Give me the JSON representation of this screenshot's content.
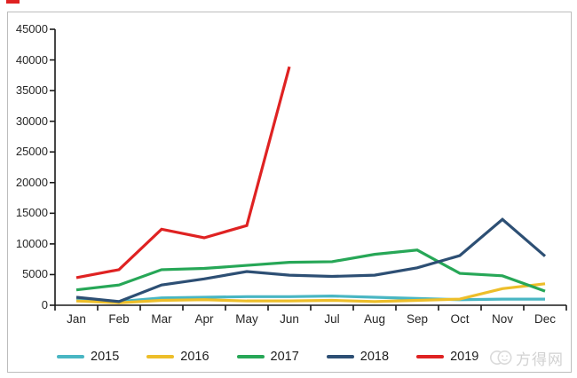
{
  "page": {
    "top_left_marker_color": "#df2222",
    "frame_border_color": "#bdbdbd",
    "watermark": {
      "text": "方得网",
      "color": "#d2d2d2",
      "icon": "smiley-chat-logo-icon",
      "icon_color": "#d9d9d9"
    }
  },
  "chart_data": {
    "type": "line",
    "title": "",
    "xlabel": "",
    "ylabel": "",
    "categories": [
      "Jan",
      "Feb",
      "Mar",
      "Apr",
      "May",
      "Jun",
      "Jul",
      "Aug",
      "Sep",
      "Oct",
      "Nov",
      "Dec"
    ],
    "series": [
      {
        "name": "2015",
        "color": "#49b6c3",
        "values": [
          1000,
          600,
          1200,
          1300,
          1400,
          1400,
          1500,
          1300,
          1100,
          900,
          1000,
          1000
        ]
      },
      {
        "name": "2016",
        "color": "#edbe2a",
        "values": [
          700,
          400,
          800,
          900,
          700,
          700,
          800,
          600,
          800,
          1000,
          2700,
          3500
        ]
      },
      {
        "name": "2017",
        "color": "#27a757",
        "values": [
          2500,
          3300,
          5800,
          6000,
          6500,
          7000,
          7100,
          8300,
          9000,
          5200,
          4800,
          2300
        ]
      },
      {
        "name": "2018",
        "color": "#2d4f74",
        "values": [
          1300,
          600,
          3300,
          4300,
          5500,
          4900,
          4700,
          4900,
          6100,
          8100,
          14000,
          8000
        ]
      },
      {
        "name": "2019",
        "color": "#df2222",
        "values": [
          4500,
          5800,
          12400,
          11000,
          13000,
          38900,
          null,
          null,
          null,
          null,
          null,
          null
        ]
      }
    ],
    "ylim": [
      0,
      45000
    ],
    "ytick_step": 5000,
    "grid": false,
    "legend_position": "bottom",
    "axis_color": "#1a1a1a"
  }
}
